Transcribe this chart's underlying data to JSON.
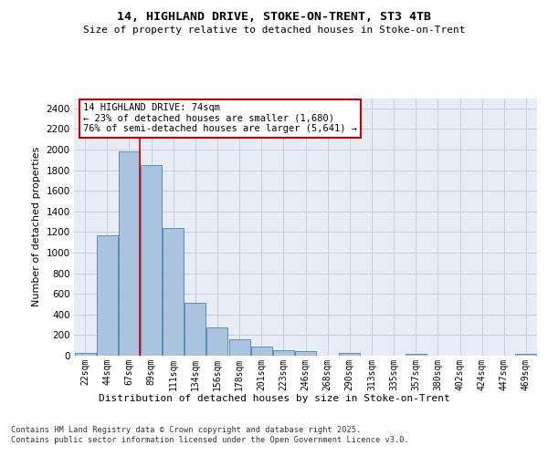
{
  "title1": "14, HIGHLAND DRIVE, STOKE-ON-TRENT, ST3 4TB",
  "title2": "Size of property relative to detached houses in Stoke-on-Trent",
  "xlabel": "Distribution of detached houses by size in Stoke-on-Trent",
  "ylabel": "Number of detached properties",
  "categories": [
    "22sqm",
    "44sqm",
    "67sqm",
    "89sqm",
    "111sqm",
    "134sqm",
    "156sqm",
    "178sqm",
    "201sqm",
    "223sqm",
    "246sqm",
    "268sqm",
    "290sqm",
    "313sqm",
    "335sqm",
    "357sqm",
    "380sqm",
    "402sqm",
    "424sqm",
    "447sqm",
    "469sqm"
  ],
  "values": [
    30,
    1170,
    1980,
    1850,
    1240,
    515,
    270,
    160,
    90,
    50,
    40,
    0,
    25,
    0,
    0,
    20,
    0,
    0,
    0,
    0,
    20
  ],
  "bar_color": "#aac4e0",
  "bar_edge_color": "#5b8db8",
  "grid_color": "#c8ccd8",
  "bg_color": "#e8ecf4",
  "vline_color": "#cc0000",
  "annotation_text": "14 HIGHLAND DRIVE: 74sqm\n← 23% of detached houses are smaller (1,680)\n76% of semi-detached houses are larger (5,641) →",
  "annotation_box_color": "#cc0000",
  "ylim": [
    0,
    2500
  ],
  "yticks": [
    0,
    200,
    400,
    600,
    800,
    1000,
    1200,
    1400,
    1600,
    1800,
    2000,
    2200,
    2400
  ],
  "footer": "Contains HM Land Registry data © Crown copyright and database right 2025.\nContains public sector information licensed under the Open Government Licence v3.0."
}
